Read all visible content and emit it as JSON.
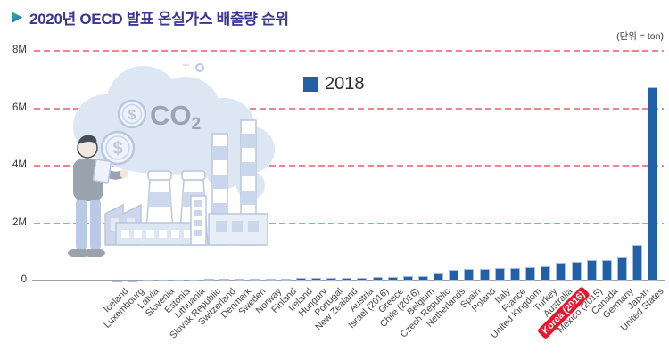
{
  "header": {
    "title": "2020년 OECD 발표 온실가스 배출량 순위",
    "arrow_icon": "chevron-right",
    "title_color": "#3A3795"
  },
  "unit_note": "(단위 = ton)",
  "legend": {
    "label": "2018",
    "color": "#215FA6"
  },
  "y_axis": {
    "ticks": [
      "8M",
      "6M",
      "4M",
      "2M",
      "0"
    ]
  },
  "chart_data": {
    "type": "bar",
    "title": "2020년 OECD 발표 온실가스 배출량 순위",
    "subtitle": "",
    "series_name": "2018",
    "value_unit": "M ton",
    "ylim": [
      0,
      8
    ],
    "ytick_labels": [
      "0",
      "2M",
      "4M",
      "6M",
      "8M"
    ],
    "grid": "dashed horizontal, pink",
    "legend_position": "top-center",
    "categories": [
      "Iceland",
      "Luxembourg",
      "Latvia",
      "Slovenia",
      "Estonia",
      "Lithuania",
      "Slovak Republic",
      "Switzerland",
      "Denmark",
      "Sweden",
      "Norway",
      "Finland",
      "Ireland",
      "Hungary",
      "Portugal",
      "New Zealand",
      "Austria",
      "Israel (2016)",
      "Greece",
      "Chile (2016)",
      "Belgium",
      "Czech Republic",
      "Netherlands",
      "Spain",
      "Poland",
      "Italy",
      "France",
      "United Kingdom",
      "Turkey",
      "Australia",
      "Korea (2016)",
      "Mexico (2015)",
      "Canada",
      "Germany",
      "Japan",
      "United States"
    ],
    "values": [
      0.01,
      0.01,
      0.02,
      0.02,
      0.03,
      0.03,
      0.05,
      0.05,
      0.06,
      0.06,
      0.07,
      0.07,
      0.08,
      0.08,
      0.09,
      0.1,
      0.1,
      0.11,
      0.12,
      0.14,
      0.17,
      0.26,
      0.36,
      0.39,
      0.4,
      0.42,
      0.43,
      0.45,
      0.51,
      0.62,
      0.65,
      0.7,
      0.72,
      0.82,
      1.24,
      6.73
    ],
    "bar_color": "#215FA6",
    "highlight_category": "Korea (2016)",
    "highlight_color": "#E8182C",
    "gridline_color": "#F2848F",
    "axis_color": "#9BA1A8"
  },
  "illustration": {
    "co2_label": "CO",
    "co2_sub": "2",
    "coin_symbol": "$"
  }
}
